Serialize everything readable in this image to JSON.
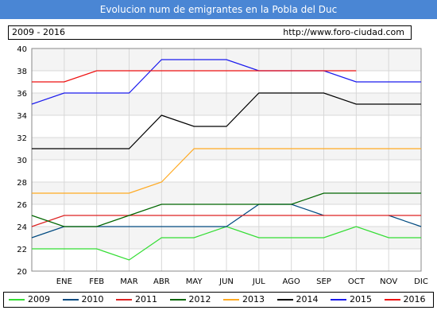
{
  "title": "Evolucion num de emigrantes en la Pobla del Duc",
  "info": {
    "period": "2009 - 2016",
    "site": "http://www.foro-ciudad.com"
  },
  "chart_data": {
    "type": "line",
    "categories": [
      "",
      "ENE",
      "FEB",
      "MAR",
      "ABR",
      "MAY",
      "JUN",
      "JUL",
      "AGO",
      "SEP",
      "OCT",
      "NOV",
      "DIC"
    ],
    "ylim": [
      20,
      40
    ],
    "yticks": [
      20,
      22,
      24,
      26,
      28,
      30,
      32,
      34,
      36,
      38,
      40
    ],
    "grid": true,
    "legend_position": "bottom",
    "series": [
      {
        "name": "2009",
        "color": "#33dd33",
        "values": [
          22,
          22,
          22,
          21,
          23,
          23,
          24,
          23,
          23,
          23,
          24,
          23,
          23
        ]
      },
      {
        "name": "2010",
        "color": "#004a80",
        "values": [
          23,
          24,
          24,
          24,
          24,
          24,
          24,
          26,
          26,
          25,
          null,
          25,
          24
        ]
      },
      {
        "name": "2011",
        "color": "#dd2222",
        "values": [
          24,
          25,
          25,
          25,
          25,
          25,
          25,
          25,
          25,
          25,
          25,
          25,
          25
        ]
      },
      {
        "name": "2012",
        "color": "#006600",
        "values": [
          25,
          24,
          24,
          25,
          26,
          26,
          26,
          26,
          26,
          27,
          27,
          27,
          27
        ]
      },
      {
        "name": "2013",
        "color": "#ffaa22",
        "values": [
          27,
          27,
          27,
          27,
          28,
          31,
          31,
          31,
          31,
          31,
          31,
          31,
          31
        ]
      },
      {
        "name": "2014",
        "color": "#000000",
        "values": [
          31,
          31,
          31,
          31,
          34,
          33,
          33,
          36,
          36,
          36,
          35,
          35,
          35
        ]
      },
      {
        "name": "2015",
        "color": "#1a1aee",
        "values": [
          35,
          36,
          36,
          36,
          39,
          39,
          39,
          38,
          38,
          38,
          37,
          37,
          37
        ]
      },
      {
        "name": "2016",
        "color": "#ee1111",
        "values": [
          37,
          37,
          38,
          38,
          38,
          38,
          38,
          38,
          38,
          38,
          38,
          null,
          null
        ]
      }
    ]
  }
}
